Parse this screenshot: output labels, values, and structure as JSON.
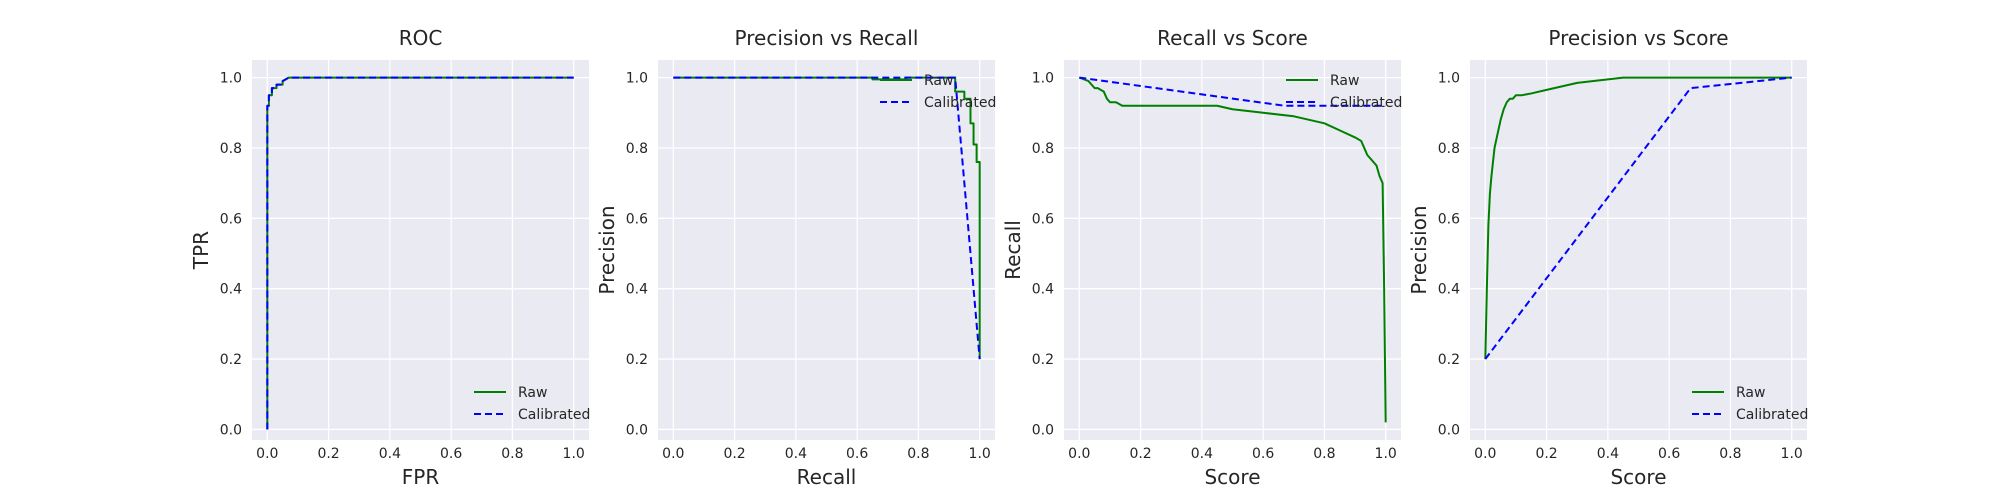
{
  "chart_data": [
    {
      "type": "line",
      "title": "ROC",
      "xlabel": "FPR",
      "ylabel": "TPR",
      "xlim": [
        -0.05,
        1.05
      ],
      "ylim": [
        -0.03,
        1.05
      ],
      "ticks": [
        0.0,
        0.2,
        0.4,
        0.6,
        0.8,
        1.0
      ],
      "tick_labels": [
        "0.0",
        "0.2",
        "0.4",
        "0.6",
        "0.8",
        "1.0"
      ],
      "grid": true,
      "legend": "lower-right",
      "series": [
        {
          "name": "Raw",
          "color": "#008000",
          "style": "solid",
          "x": [
            0.0,
            0.0,
            0.005,
            0.005,
            0.015,
            0.015,
            0.03,
            0.03,
            0.05,
            0.05,
            0.07,
            1.0
          ],
          "y": [
            0.0,
            0.92,
            0.92,
            0.95,
            0.95,
            0.97,
            0.97,
            0.98,
            0.98,
            0.99,
            1.0,
            1.0
          ]
        },
        {
          "name": "Calibrated",
          "color": "#0000ff",
          "style": "dashed",
          "x": [
            0.0,
            0.0,
            0.005,
            0.005,
            0.015,
            0.015,
            0.03,
            0.03,
            0.05,
            0.05,
            0.07,
            1.0
          ],
          "y": [
            0.0,
            0.92,
            0.92,
            0.95,
            0.95,
            0.97,
            0.97,
            0.98,
            0.98,
            0.99,
            1.0,
            1.0
          ]
        }
      ]
    },
    {
      "type": "line",
      "title": "Precision vs Recall",
      "xlabel": "Recall",
      "ylabel": "Precision",
      "xlim": [
        -0.05,
        1.05
      ],
      "ylim": [
        -0.03,
        1.05
      ],
      "ticks": [
        0.0,
        0.2,
        0.4,
        0.6,
        0.8,
        1.0
      ],
      "tick_labels": [
        "0.0",
        "0.2",
        "0.4",
        "0.6",
        "0.8",
        "1.0"
      ],
      "grid": true,
      "legend": "upper-right",
      "series": [
        {
          "name": "Raw",
          "color": "#008000",
          "style": "solid",
          "x": [
            0.0,
            0.65,
            0.65,
            0.76,
            0.76,
            0.92,
            0.92,
            0.95,
            0.95,
            0.97,
            0.97,
            0.98,
            0.98,
            0.99,
            0.99,
            1.0,
            1.0
          ],
          "y": [
            1.0,
            1.0,
            0.995,
            0.995,
            1.0,
            1.0,
            0.96,
            0.96,
            0.94,
            0.94,
            0.87,
            0.87,
            0.81,
            0.81,
            0.76,
            0.76,
            0.2
          ]
        },
        {
          "name": "Calibrated",
          "color": "#0000ff",
          "style": "dashed",
          "x": [
            0.0,
            0.92,
            1.0
          ],
          "y": [
            1.0,
            1.0,
            0.2
          ]
        }
      ]
    },
    {
      "type": "line",
      "title": "Recall vs Score",
      "xlabel": "Score",
      "ylabel": "Recall",
      "xlim": [
        -0.05,
        1.05
      ],
      "ylim": [
        -0.03,
        1.05
      ],
      "ticks": [
        0.0,
        0.2,
        0.4,
        0.6,
        0.8,
        1.0
      ],
      "tick_labels": [
        "0.0",
        "0.2",
        "0.4",
        "0.6",
        "0.8",
        "1.0"
      ],
      "grid": true,
      "legend": "upper-right",
      "series": [
        {
          "name": "Raw",
          "color": "#008000",
          "style": "solid",
          "x": [
            0.0,
            0.03,
            0.04,
            0.05,
            0.06,
            0.08,
            0.09,
            0.1,
            0.12,
            0.14,
            0.2,
            0.3,
            0.45,
            0.5,
            0.6,
            0.7,
            0.8,
            0.85,
            0.9,
            0.92,
            0.93,
            0.94,
            0.95,
            0.97,
            0.98,
            0.99,
            0.995,
            1.0
          ],
          "y": [
            1.0,
            0.99,
            0.98,
            0.97,
            0.97,
            0.96,
            0.94,
            0.93,
            0.93,
            0.92,
            0.92,
            0.92,
            0.92,
            0.91,
            0.9,
            0.89,
            0.87,
            0.85,
            0.83,
            0.82,
            0.8,
            0.78,
            0.77,
            0.75,
            0.72,
            0.7,
            0.4,
            0.02
          ]
        },
        {
          "name": "Calibrated",
          "color": "#0000ff",
          "style": "dashed",
          "x": [
            0.0,
            0.67,
            1.0
          ],
          "y": [
            1.0,
            0.92,
            0.92
          ]
        }
      ]
    },
    {
      "type": "line",
      "title": "Precision vs Score",
      "xlabel": "Score",
      "ylabel": "Precision",
      "xlim": [
        -0.05,
        1.05
      ],
      "ylim": [
        -0.03,
        1.05
      ],
      "ticks": [
        0.0,
        0.2,
        0.4,
        0.6,
        0.8,
        1.0
      ],
      "tick_labels": [
        "0.0",
        "0.2",
        "0.4",
        "0.6",
        "0.8",
        "1.0"
      ],
      "grid": true,
      "legend": "lower-right",
      "series": [
        {
          "name": "Raw",
          "color": "#008000",
          "style": "solid",
          "x": [
            0.0,
            0.005,
            0.01,
            0.015,
            0.02,
            0.025,
            0.03,
            0.04,
            0.05,
            0.06,
            0.07,
            0.08,
            0.09,
            0.1,
            0.12,
            0.15,
            0.2,
            0.25,
            0.3,
            0.4,
            0.45,
            0.6,
            0.8,
            1.0
          ],
          "y": [
            0.2,
            0.4,
            0.58,
            0.67,
            0.72,
            0.76,
            0.8,
            0.84,
            0.88,
            0.91,
            0.93,
            0.94,
            0.94,
            0.95,
            0.95,
            0.955,
            0.965,
            0.975,
            0.985,
            0.995,
            1.0,
            1.0,
            1.0,
            1.0
          ]
        },
        {
          "name": "Calibrated",
          "color": "#0000ff",
          "style": "dashed",
          "x": [
            0.0,
            0.67,
            1.0
          ],
          "y": [
            0.2,
            0.97,
            1.0
          ]
        }
      ]
    }
  ]
}
